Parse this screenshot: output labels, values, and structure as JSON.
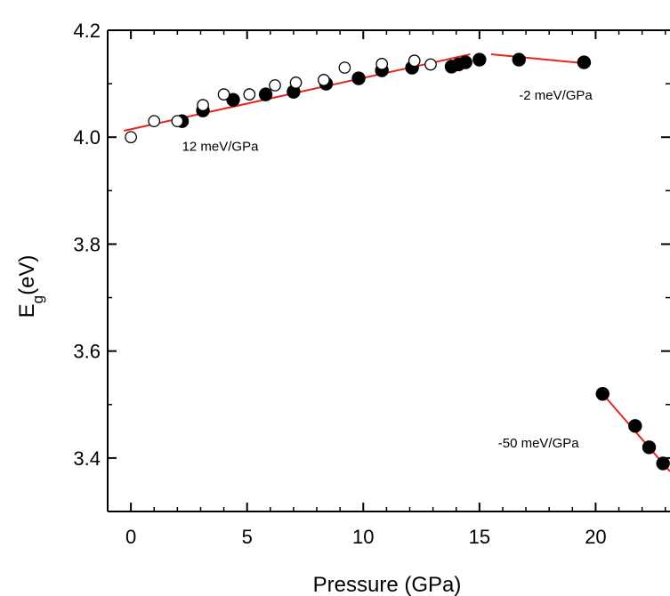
{
  "chart_data": {
    "type": "scatter",
    "xlabel": "Pressure (GPa)",
    "ylabel_main": "E",
    "ylabel_sub": "g",
    "ylabel_unit": "(eV)",
    "xlim": [
      -1,
      23.2
    ],
    "ylim": [
      3.3,
      4.2
    ],
    "x_ticks": [
      0,
      5,
      10,
      15,
      20
    ],
    "y_ticks": [
      3.4,
      3.6,
      3.8,
      4.0,
      4.2
    ],
    "y_tick_labels": [
      "3.4",
      "3.6",
      "3.8",
      "4.0",
      "4.2"
    ],
    "series": [
      {
        "marker": "filled-circle",
        "points": [
          [
            2.2,
            4.03
          ],
          [
            3.1,
            4.05
          ],
          [
            4.4,
            4.07
          ],
          [
            5.8,
            4.08
          ],
          [
            7.0,
            4.085
          ],
          [
            8.4,
            4.1
          ],
          [
            9.8,
            4.11
          ],
          [
            10.8,
            4.125
          ],
          [
            12.1,
            4.13
          ],
          [
            13.8,
            4.132
          ],
          [
            14.1,
            4.136
          ],
          [
            14.4,
            4.14
          ],
          [
            15.0,
            4.145
          ],
          [
            16.7,
            4.145
          ],
          [
            19.5,
            4.14
          ],
          [
            20.3,
            3.52
          ],
          [
            21.7,
            3.46
          ],
          [
            22.3,
            3.42
          ],
          [
            22.9,
            3.39
          ]
        ]
      },
      {
        "marker": "open-circle",
        "points": [
          [
            0.0,
            4.0
          ],
          [
            1.0,
            4.03
          ],
          [
            2.0,
            4.03
          ],
          [
            3.1,
            4.06
          ],
          [
            4.0,
            4.08
          ],
          [
            5.1,
            4.08
          ],
          [
            6.2,
            4.097
          ],
          [
            7.1,
            4.102
          ],
          [
            8.3,
            4.107
          ],
          [
            9.2,
            4.13
          ],
          [
            10.8,
            4.137
          ],
          [
            12.2,
            4.143
          ],
          [
            12.9,
            4.136
          ]
        ]
      }
    ],
    "fits": [
      {
        "label": "12 meV/GPa",
        "x": [
          -0.3,
          14.6
        ],
        "y": [
          4.012,
          4.155
        ]
      },
      {
        "label": "-2 meV/GPa",
        "x": [
          15.5,
          19.8
        ],
        "y": [
          4.155,
          4.137
        ]
      },
      {
        "label": "-50 meV/GPa",
        "x": [
          20.3,
          23.2
        ],
        "y": [
          3.52,
          3.375
        ]
      }
    ],
    "annotations": [
      {
        "text": "12 meV/GPa",
        "x": 2.2,
        "y": 3.975
      },
      {
        "text": "-2 meV/GPa",
        "x": 16.7,
        "y": 4.07
      },
      {
        "text": "-50 meV/GPa",
        "x": 15.8,
        "y": 3.42
      }
    ],
    "colors": {
      "fit_line": "#e8231d",
      "marker": "#000000",
      "axis": "#000000"
    },
    "grid": false,
    "legend": "none"
  }
}
